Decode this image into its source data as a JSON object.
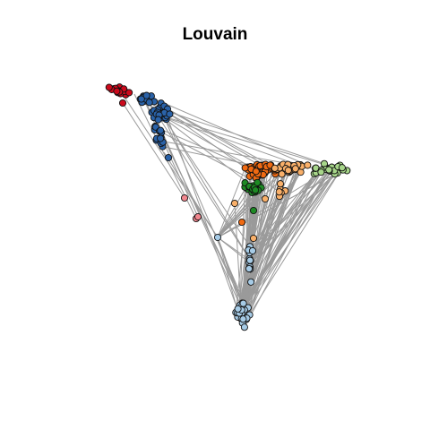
{
  "title": "Louvain",
  "colors": {
    "edge": "#9a9a9a",
    "outline": "#111111",
    "clusters": {
      "red": "#cc0a1c",
      "dark_blue": "#2a62a8",
      "orange": "#f06a12",
      "light_orange": "#f9b06a",
      "light_green": "#a7d68a",
      "dark_green": "#1d8a24",
      "pink": "#f1878f",
      "light_blue": "#a6cbe6"
    }
  }
}
